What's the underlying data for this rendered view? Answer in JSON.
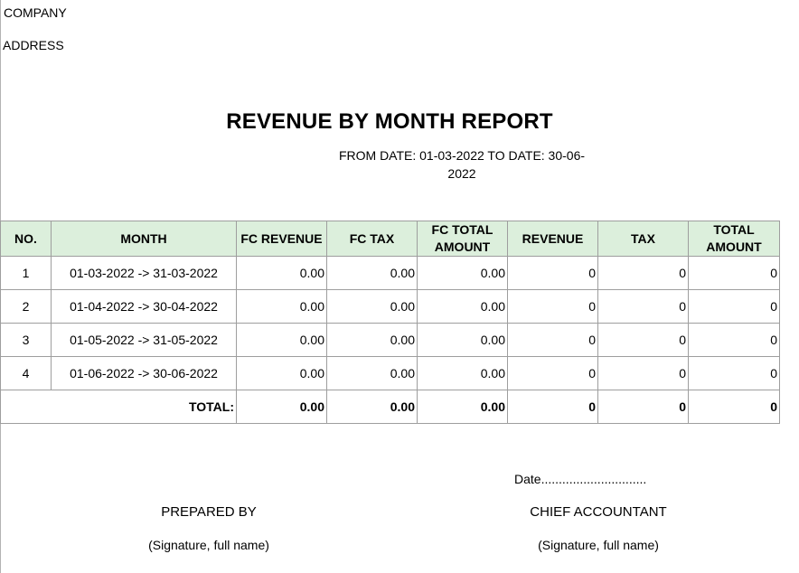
{
  "header": {
    "company": "COMPANY",
    "address": "ADDRESS",
    "title": "REVENUE BY MONTH REPORT",
    "date_range": "FROM DATE: 01-03-2022 TO DATE: 30-06-2022"
  },
  "table": {
    "columns": [
      "NO.",
      "MONTH",
      "FC REVENUE",
      "FC TAX",
      "FC TOTAL AMOUNT",
      "REVENUE",
      "TAX",
      "TOTAL AMOUNT"
    ],
    "rows": [
      {
        "no": "1",
        "month": "01-03-2022 -> 31-03-2022",
        "fc_revenue": "0.00",
        "fc_tax": "0.00",
        "fc_total": "0.00",
        "revenue": "0",
        "tax": "0",
        "total": "0"
      },
      {
        "no": "2",
        "month": "01-04-2022 -> 30-04-2022",
        "fc_revenue": "0.00",
        "fc_tax": "0.00",
        "fc_total": "0.00",
        "revenue": "0",
        "tax": "0",
        "total": "0"
      },
      {
        "no": "3",
        "month": "01-05-2022 -> 31-05-2022",
        "fc_revenue": "0.00",
        "fc_tax": "0.00",
        "fc_total": "0.00",
        "revenue": "0",
        "tax": "0",
        "total": "0"
      },
      {
        "no": "4",
        "month": "01-06-2022 -> 30-06-2022",
        "fc_revenue": "0.00",
        "fc_tax": "0.00",
        "fc_total": "0.00",
        "revenue": "0",
        "tax": "0",
        "total": "0"
      }
    ],
    "total": {
      "label": "TOTAL:",
      "fc_revenue": "0.00",
      "fc_tax": "0.00",
      "fc_total": "0.00",
      "revenue": "0",
      "tax": "0",
      "total": "0"
    }
  },
  "footer": {
    "date_line": "Date..............................",
    "prepared_by": "PREPARED BY",
    "chief_accountant": "CHIEF ACCOUNTANT",
    "signature_left": "(Signature, full name)",
    "signature_right": "(Signature, full name)"
  },
  "colors": {
    "header_fill": "#dcefdc",
    "grid_line": "#9e9e9e"
  }
}
